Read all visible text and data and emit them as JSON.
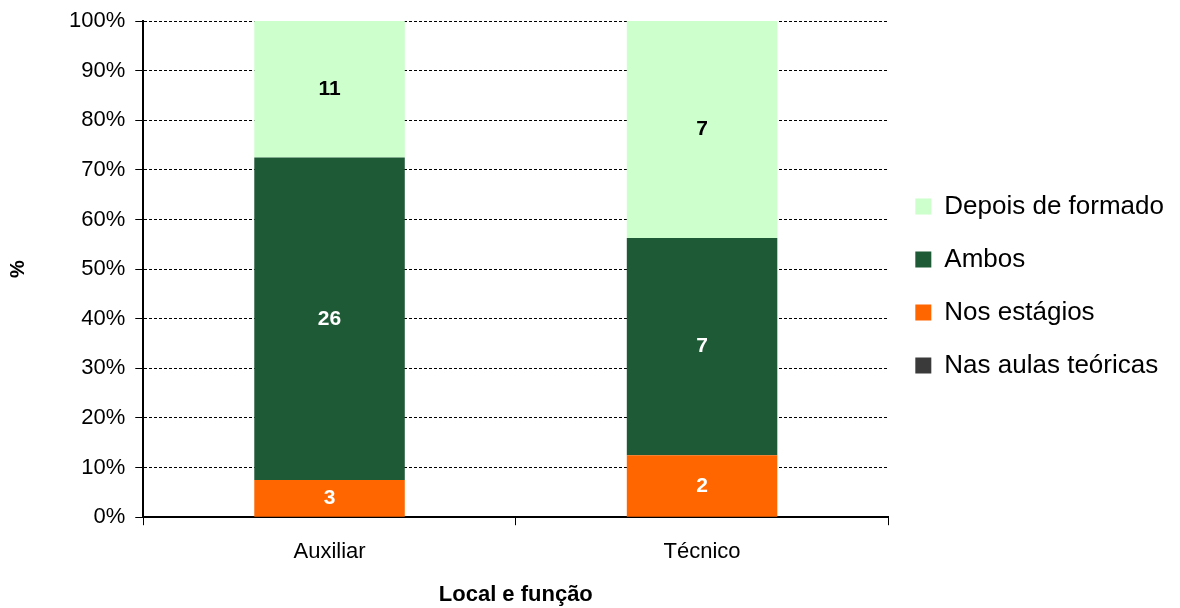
{
  "chart_data": {
    "type": "bar",
    "xlabel": "Local e função",
    "ylabel": "%",
    "categories": [
      "Auxiliar",
      "Técnico"
    ],
    "series": [
      {
        "name": "Nas aulas teóricas",
        "color": "#3a3a3a",
        "values": [
          0,
          0
        ]
      },
      {
        "name": "Nos estágios",
        "color": "#ff6600",
        "values": [
          7.5,
          12.5
        ]
      },
      {
        "name": "Ambos",
        "color": "#1f5a36",
        "values": [
          65,
          43.75
        ]
      },
      {
        "name": "Depois de formado",
        "color": "#ccffcc",
        "values": [
          27.5,
          43.75
        ]
      }
    ],
    "stacked": true,
    "ylim": [
      0,
      100
    ],
    "yticks": [
      {
        "value": 0,
        "label": "0%"
      },
      {
        "value": 10,
        "label": "10%"
      },
      {
        "value": 20,
        "label": "20%"
      },
      {
        "value": 30,
        "label": "30%"
      },
      {
        "value": 40,
        "label": "40%"
      },
      {
        "value": 50,
        "label": "50%"
      },
      {
        "value": 60,
        "label": "60%"
      },
      {
        "value": 70,
        "label": "70%"
      },
      {
        "value": 80,
        "label": "80%"
      },
      {
        "value": 90,
        "label": "90%"
      },
      {
        "value": 100,
        "label": "100%"
      }
    ],
    "annotations": [
      "3",
      "26",
      "11",
      "2",
      "7",
      "7"
    ],
    "grid": "y",
    "legend": "right"
  }
}
